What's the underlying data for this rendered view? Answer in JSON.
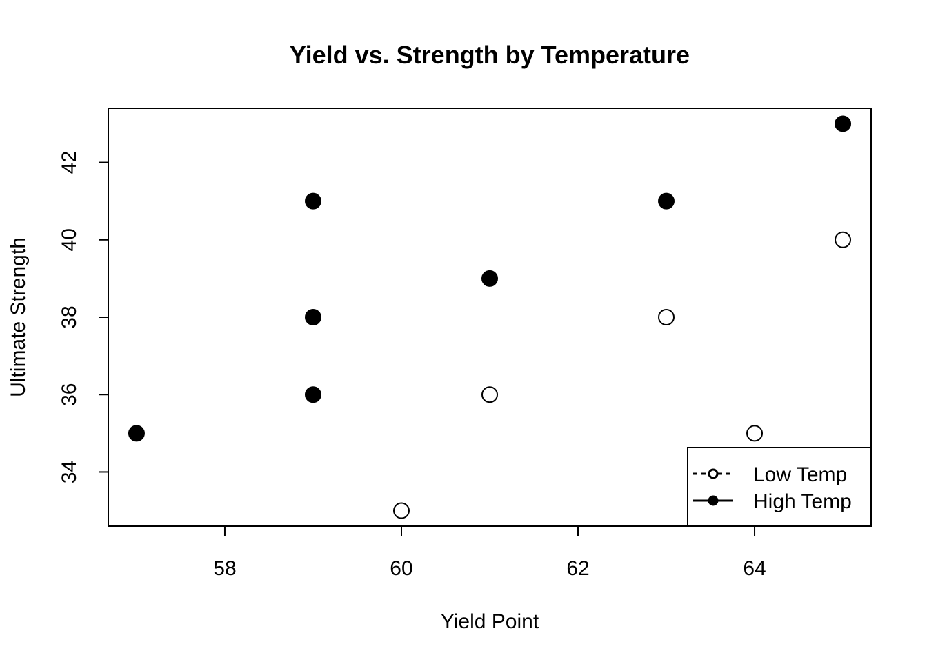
{
  "chart_data": {
    "type": "scatter",
    "title": "Yield vs. Strength by Temperature",
    "xlabel": "Yield Point",
    "ylabel": "Ultimate Strength",
    "xlim": [
      56.68,
      65.32
    ],
    "ylim": [
      32.6,
      43.4
    ],
    "xticks": [
      58,
      60,
      62,
      64
    ],
    "yticks": [
      34,
      36,
      38,
      40,
      42
    ],
    "grid": false,
    "legend_position": "bottom-right",
    "series": [
      {
        "name": "Low Temp",
        "marker": "open-circle",
        "line_style": "dashed",
        "color": "#000000",
        "points": [
          {
            "x": 60,
            "y": 33
          },
          {
            "x": 61,
            "y": 36
          },
          {
            "x": 63,
            "y": 38
          },
          {
            "x": 64,
            "y": 35
          },
          {
            "x": 65,
            "y": 40
          }
        ]
      },
      {
        "name": "High Temp",
        "marker": "filled-circle",
        "line_style": "solid",
        "color": "#000000",
        "points": [
          {
            "x": 57,
            "y": 35
          },
          {
            "x": 59,
            "y": 36
          },
          {
            "x": 59,
            "y": 38
          },
          {
            "x": 59,
            "y": 41
          },
          {
            "x": 61,
            "y": 39
          },
          {
            "x": 63,
            "y": 41
          },
          {
            "x": 65,
            "y": 43
          }
        ]
      }
    ]
  }
}
